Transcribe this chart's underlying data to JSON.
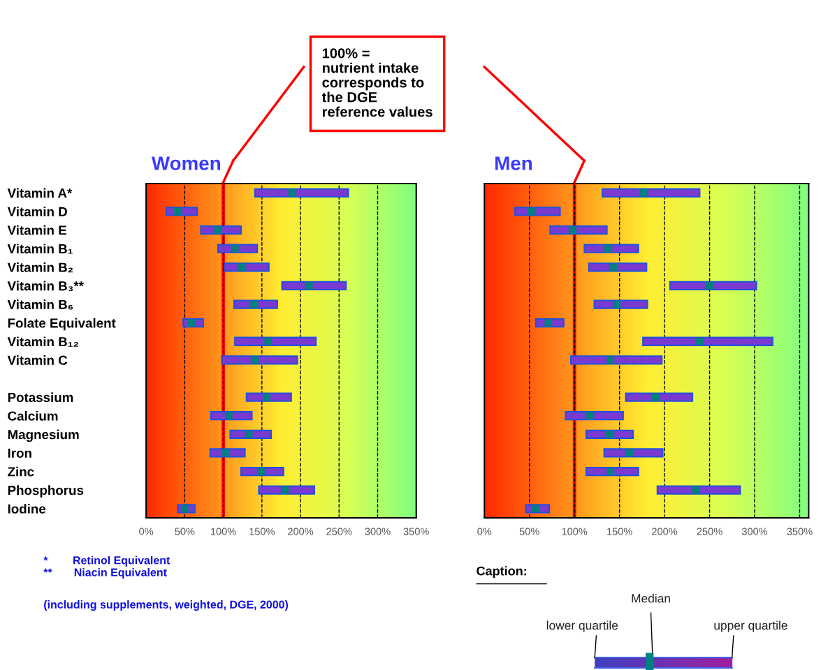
{
  "chart_data": [
    {
      "type": "bar",
      "orientation": "horizontal",
      "title": "Women",
      "categories": [
        "Vitamin A*",
        "Vitamin D",
        "Vitamin E",
        "Vitamin B₁",
        "Vitamin B₂",
        "Vitamin B₃**",
        "Vitamin B₆",
        "Folate Equivalent",
        "Vitamin B₁₂",
        "Vitamin C",
        null,
        "Potassium",
        "Calcium",
        "Magnesium",
        "Iron",
        "Zinc",
        "Phosphorus",
        "Iodine"
      ],
      "series": [
        {
          "type": "bar",
          "color": "#7a3ad0",
          "base": [
            141,
            26,
            71,
            93,
            102,
            176,
            114,
            48,
            115,
            98,
            null,
            130,
            84,
            109,
            83,
            123,
            146,
            41
          ],
          "values": [
            121,
            40,
            52,
            51,
            57,
            83,
            56,
            26,
            105,
            98,
            null,
            58,
            53,
            53,
            45,
            55,
            72,
            22
          ]
        },
        {
          "type": "scatter",
          "color": "#008080",
          "marker": "square",
          "values": [
            189,
            41,
            93,
            115,
            124,
            211,
            139,
            59,
            158,
            141,
            null,
            156,
            107,
            133,
            103,
            149,
            180,
            50
          ]
        }
      ],
      "xlim": [
        0,
        350
      ],
      "xticks": [
        {
          "value": 0,
          "label": "0%"
        },
        {
          "value": 50,
          "label": "50%"
        },
        {
          "value": 100,
          "label": "100%"
        },
        {
          "value": 150,
          "label": "150%"
        },
        {
          "value": 200,
          "label": "200%"
        },
        {
          "value": 250,
          "label": "250%"
        },
        {
          "value": 300,
          "label": "300%"
        },
        {
          "value": 350,
          "label": "350%"
        }
      ],
      "grid": "x",
      "ref_lines": [
        {
          "axis": "x",
          "value": 100,
          "color": "#ff0000"
        }
      ],
      "annotations": [
        "100% =\nnutrient intake\ncorresponds to\nthe DGE\nreference values",
        "*        Retinol Equivalent",
        "**       Niacin Equivalent",
        "(including supplements, weighted, DGE, 2000)"
      ]
    },
    {
      "type": "bar",
      "orientation": "horizontal",
      "title": "Men",
      "categories": [
        null,
        null,
        null,
        null,
        null,
        null,
        null,
        null,
        null,
        null,
        null,
        null,
        null,
        null,
        null,
        null,
        null,
        null
      ],
      "series": [
        {
          "type": "bar",
          "color": "#7a3ad0",
          "base": [
            131,
            34,
            73,
            111,
            116,
            206,
            122,
            57,
            176,
            96,
            null,
            157,
            90,
            113,
            133,
            113,
            192,
            46
          ],
          "values": [
            108,
            50,
            63,
            60,
            64,
            96,
            59,
            31,
            144,
            101,
            null,
            74,
            64,
            52,
            65,
            58,
            92,
            26
          ]
        },
        {
          "type": "scatter",
          "color": "#008080",
          "marker": "square",
          "values": [
            177,
            52,
            98,
            137,
            143,
            250,
            147,
            71,
            239,
            140,
            null,
            190,
            117,
            139,
            161,
            140,
            235,
            57
          ]
        }
      ],
      "xlim": [
        0,
        360
      ],
      "xticks": [
        {
          "value": 0,
          "label": "0%"
        },
        {
          "value": 50,
          "label": "50%"
        },
        {
          "value": 100,
          "label": "100%"
        },
        {
          "value": 150,
          "label": "150%"
        },
        {
          "value": 200,
          "label": "200%"
        },
        {
          "value": 250,
          "label": "250%"
        },
        {
          "value": 300,
          "label": "300%"
        },
        {
          "value": 350,
          "label": "350%"
        }
      ],
      "grid": "x",
      "tick_labels": "x",
      "ref_lines": [
        {
          "axis": "x",
          "value": 100,
          "color": "#ff0000"
        }
      ]
    },
    {
      "type": "other",
      "title": "Caption:",
      "annotations": [
        "Median",
        "lower quartile",
        "upper quartile"
      ]
    }
  ]
}
